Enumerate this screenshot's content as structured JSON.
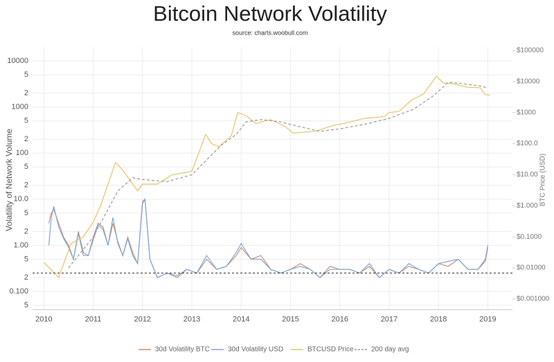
{
  "chart_data": {
    "type": "line",
    "title": "Bitcoin Network Volatility",
    "subtitle": "source: charts.woobull.com",
    "y_label": "Volatility of Network Volume",
    "y2_label": "BTC Price (USD)",
    "log_y": true,
    "log_y2": true,
    "grid": true,
    "legend": "bottom",
    "xlim": [
      2009.77,
      2019.5
    ],
    "xticks": [
      2010,
      2011,
      2012,
      2013,
      2014,
      2015,
      2016,
      2017,
      2018,
      2019
    ],
    "ylim": [
      0.04,
      20000
    ],
    "yticks": [
      10000,
      {
        "value": 5000,
        "label": "5"
      },
      {
        "value": 2000,
        "label": "2"
      },
      1000,
      {
        "value": 500,
        "label": "5"
      },
      {
        "value": 200,
        "label": "2"
      },
      100,
      {
        "value": 50,
        "label": "5"
      },
      {
        "value": 20,
        "label": "2"
      },
      {
        "value": 10,
        "label": "10.0"
      },
      {
        "value": 5,
        "label": "5"
      },
      {
        "value": 2,
        "label": "2"
      },
      {
        "value": 1,
        "label": "1.00"
      },
      {
        "value": 0.5,
        "label": "5"
      },
      {
        "value": 0.2,
        "label": "2"
      },
      {
        "value": 0.1,
        "label": "0.100"
      },
      {
        "value": 0.05,
        "label": "5"
      }
    ],
    "y2lim": [
      0.00045,
      129000
    ],
    "y2ticks": [
      {
        "value": 100000,
        "label": "$100000"
      },
      {
        "value": 10000,
        "label": "$10000"
      },
      {
        "value": 1000,
        "label": "$1000"
      },
      {
        "value": 100,
        "label": "$100.0"
      },
      {
        "value": 10,
        "label": "$10.00"
      },
      {
        "value": 1,
        "label": "$1.000"
      },
      {
        "value": 0.1,
        "label": "$0.1000"
      },
      {
        "value": 0.01,
        "label": "$0.01000"
      },
      {
        "value": 0.001,
        "label": "$0.001000"
      }
    ],
    "hline": 0.25,
    "series": [
      {
        "name": "30d Volatility BTC",
        "color": "#c98f78",
        "dashed": false,
        "x": [
          2010.1,
          2010.15,
          2010.2,
          2010.3,
          2010.4,
          2010.5,
          2010.6,
          2010.7,
          2010.8,
          2010.9,
          2011.0,
          2011.1,
          2011.2,
          2011.3,
          2011.4,
          2011.5,
          2011.6,
          2011.7,
          2011.8,
          2011.9,
          2012.0,
          2012.05,
          2012.15,
          2012.3,
          2012.5,
          2012.7,
          2012.9,
          2013.1,
          2013.3,
          2013.5,
          2013.7,
          2013.9,
          2014.0,
          2014.2,
          2014.4,
          2014.6,
          2014.8,
          2015.0,
          2015.2,
          2015.4,
          2015.6,
          2015.8,
          2016.0,
          2016.2,
          2016.4,
          2016.6,
          2016.8,
          2017.0,
          2017.2,
          2017.4,
          2017.6,
          2017.8,
          2018.0,
          2018.2,
          2018.4,
          2018.6,
          2018.8,
          2018.95,
          2019.0
        ],
        "values": [
          3,
          5,
          6,
          3,
          1.5,
          1,
          0.5,
          2,
          0.7,
          0.6,
          1.5,
          3,
          2.5,
          1,
          3,
          1.2,
          0.6,
          1.5,
          0.7,
          0.4,
          9,
          10,
          0.5,
          0.2,
          0.25,
          0.2,
          0.3,
          0.25,
          0.5,
          0.3,
          0.35,
          0.6,
          0.9,
          0.5,
          0.6,
          0.3,
          0.25,
          0.3,
          0.4,
          0.3,
          0.2,
          0.35,
          0.3,
          0.3,
          0.25,
          0.35,
          0.2,
          0.3,
          0.25,
          0.35,
          0.3,
          0.25,
          0.4,
          0.35,
          0.5,
          0.3,
          0.3,
          0.45,
          0.9
        ]
      },
      {
        "name": "30d Volatility USD",
        "color": "#7fa7d6",
        "dashed": false,
        "x": [
          2010.1,
          2010.15,
          2010.2,
          2010.3,
          2010.4,
          2010.5,
          2010.6,
          2010.7,
          2010.8,
          2010.9,
          2011.0,
          2011.1,
          2011.2,
          2011.3,
          2011.4,
          2011.5,
          2011.6,
          2011.7,
          2011.8,
          2011.9,
          2012.0,
          2012.05,
          2012.15,
          2012.3,
          2012.5,
          2012.7,
          2012.9,
          2013.1,
          2013.3,
          2013.5,
          2013.7,
          2013.9,
          2014.0,
          2014.2,
          2014.4,
          2014.6,
          2014.8,
          2015.0,
          2015.2,
          2015.4,
          2015.6,
          2015.8,
          2016.0,
          2016.2,
          2016.4,
          2016.6,
          2016.8,
          2017.0,
          2017.2,
          2017.4,
          2017.6,
          2017.8,
          2018.0,
          2018.2,
          2018.4,
          2018.6,
          2018.8,
          2018.95,
          2019.0
        ],
        "values": [
          1,
          4,
          7,
          2.5,
          1.4,
          0.9,
          0.5,
          1.8,
          0.6,
          0.6,
          1.3,
          2.8,
          2.2,
          1,
          4,
          1.1,
          0.6,
          1.4,
          0.6,
          0.4,
          8,
          10,
          0.5,
          0.2,
          0.25,
          0.22,
          0.3,
          0.25,
          0.6,
          0.3,
          0.35,
          0.7,
          1.1,
          0.5,
          0.5,
          0.3,
          0.25,
          0.3,
          0.35,
          0.3,
          0.2,
          0.3,
          0.3,
          0.3,
          0.25,
          0.4,
          0.2,
          0.3,
          0.25,
          0.4,
          0.3,
          0.25,
          0.4,
          0.45,
          0.5,
          0.3,
          0.3,
          0.5,
          1
        ]
      },
      {
        "name": "BTCUSD Price",
        "color": "#e8c468",
        "dashed": false,
        "axis": "y2",
        "x": [
          2010.0,
          2010.3,
          2010.55,
          2010.8,
          2011.0,
          2011.15,
          2011.45,
          2011.6,
          2011.9,
          2012.0,
          2012.3,
          2012.6,
          2012.9,
          2013.0,
          2013.28,
          2013.4,
          2013.55,
          2013.8,
          2013.93,
          2014.1,
          2014.3,
          2014.6,
          2014.9,
          2015.05,
          2015.5,
          2015.9,
          2016.0,
          2016.5,
          2016.9,
          2017.0,
          2017.2,
          2017.45,
          2017.7,
          2017.96,
          2018.1,
          2018.3,
          2018.6,
          2018.85,
          2018.95,
          2019.05
        ],
        "values": [
          0.015,
          0.005,
          0.06,
          0.1,
          0.3,
          1,
          25,
          14,
          3,
          5,
          5,
          10,
          12,
          13,
          200,
          100,
          80,
          180,
          1000,
          800,
          450,
          600,
          350,
          220,
          250,
          400,
          420,
          650,
          750,
          1000,
          1100,
          2500,
          4000,
          15000,
          9000,
          8500,
          6500,
          6300,
          3800,
          3600
        ]
      },
      {
        "name": "200 day avg",
        "color": "#999999",
        "dashed": true,
        "axis": "y2",
        "x": [
          2010.5,
          2011.0,
          2011.5,
          2011.8,
          2012.0,
          2012.5,
          2013.0,
          2013.3,
          2013.6,
          2013.9,
          2014.1,
          2014.4,
          2014.8,
          2015.2,
          2015.6,
          2016.0,
          2016.5,
          2017.0,
          2017.5,
          2017.9,
          2018.2,
          2018.5,
          2018.9,
          2019.0
        ],
        "values": [
          0.01,
          0.1,
          3,
          8,
          7,
          6,
          10,
          30,
          90,
          200,
          500,
          600,
          500,
          350,
          250,
          300,
          420,
          650,
          1300,
          3500,
          9500,
          8500,
          7000,
          6000
        ]
      }
    ]
  }
}
